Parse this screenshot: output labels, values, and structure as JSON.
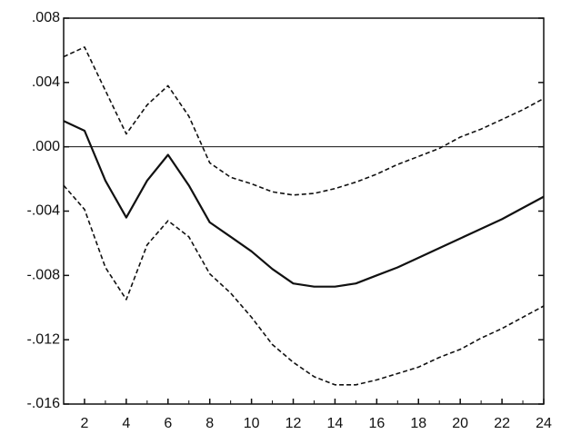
{
  "chart_data": {
    "type": "line",
    "x": [
      1,
      2,
      3,
      4,
      5,
      6,
      7,
      8,
      9,
      10,
      11,
      12,
      13,
      14,
      15,
      16,
      17,
      18,
      19,
      20,
      21,
      22,
      23,
      24
    ],
    "series": [
      {
        "color": "#111111",
        "dashed": false,
        "values": [
          0.0016,
          0.001,
          -0.0021,
          -0.0044,
          -0.0021,
          -0.0005,
          -0.0024,
          -0.0047,
          -0.0056,
          -0.0065,
          -0.0076,
          -0.0085,
          -0.0087,
          -0.0087,
          -0.0085,
          -0.008,
          -0.0075,
          -0.0069,
          -0.0063,
          -0.0057,
          -0.0051,
          -0.0045,
          -0.0038,
          -0.0031
        ]
      },
      {
        "color": "#111111",
        "dashed": true,
        "values": [
          0.0056,
          0.0062,
          0.0035,
          0.0008,
          0.0026,
          0.0038,
          0.0019,
          -0.001,
          -0.0019,
          -0.0023,
          -0.0028,
          -0.003,
          -0.0029,
          -0.0026,
          -0.0022,
          -0.0017,
          -0.0011,
          -0.0006,
          -0.0001,
          0.0006,
          0.0011,
          0.0017,
          0.0023,
          0.003
        ]
      },
      {
        "color": "#111111",
        "dashed": true,
        "values": [
          -0.0024,
          -0.0039,
          -0.0075,
          -0.0095,
          -0.0061,
          -0.0046,
          -0.0056,
          -0.0079,
          -0.0091,
          -0.0106,
          -0.0123,
          -0.0134,
          -0.0143,
          -0.0148,
          -0.0148,
          -0.0145,
          -0.0141,
          -0.0137,
          -0.0131,
          -0.0126,
          -0.0119,
          -0.0113,
          -0.0106,
          -0.0099
        ]
      }
    ],
    "xlim": [
      1,
      24
    ],
    "xticks": [
      2,
      4,
      6,
      8,
      10,
      12,
      14,
      16,
      18,
      20,
      22,
      24
    ],
    "ylim": [
      -0.016,
      0.008
    ],
    "yticks": [
      {
        "value": 0.008,
        "label": ".008"
      },
      {
        "value": 0.004,
        "label": ".004"
      },
      {
        "value": 0,
        "label": ".000"
      },
      {
        "value": -0.004,
        "label": "-.004"
      },
      {
        "value": -0.008,
        "label": "-.008"
      },
      {
        "value": -0.012,
        "label": "-.012"
      },
      {
        "value": -0.016,
        "label": "-.016"
      }
    ],
    "hline": 0
  }
}
